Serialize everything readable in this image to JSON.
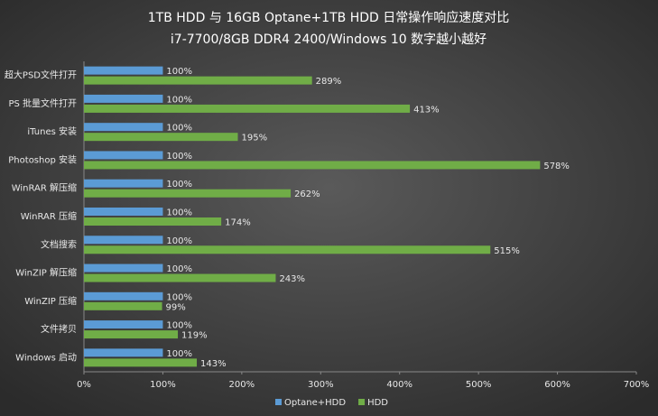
{
  "chart_data": {
    "type": "hbar",
    "title": "1TB HDD 与 16GB Optane+1TB HDD 日常操作响应速度对比",
    "subtitle": "i7-7700/8GB DDR4 2400/Windows 10 数字越小越好",
    "categories": [
      "超大PSD文件打开",
      "PS 批量文件打开",
      "iTunes 安装",
      "Photoshop 安装",
      "WinRAR 解压缩",
      "WinRAR 压缩",
      "文档搜索",
      "WinZIP 解压缩",
      "WinZIP 压缩",
      "文件拷贝",
      "Windows 启动"
    ],
    "series": [
      {
        "name": "Optane+HDD",
        "color": "#5b9bd5",
        "values": [
          100,
          100,
          100,
          100,
          100,
          100,
          100,
          100,
          100,
          100,
          100
        ],
        "value_labels": [
          "100%",
          "100%",
          "100%",
          "100%",
          "100%",
          "100%",
          "100%",
          "100%",
          "100%",
          "100%",
          "100%"
        ]
      },
      {
        "name": "HDD",
        "color": "#70ad47",
        "values": [
          289,
          413,
          195,
          578,
          262,
          174,
          515,
          243,
          99,
          119,
          143
        ],
        "value_labels": [
          "289%",
          "413%",
          "195%",
          "578%",
          "262%",
          "174%",
          "515%",
          "243%",
          "99%",
          "119%",
          "143%"
        ]
      }
    ],
    "xlim": [
      0,
      700
    ],
    "xticks": [
      {
        "value": 0,
        "label": "0%"
      },
      {
        "value": 100,
        "label": "100%"
      },
      {
        "value": 200,
        "label": "200%"
      },
      {
        "value": 300,
        "label": "300%"
      },
      {
        "value": 400,
        "label": "400%"
      },
      {
        "value": 500,
        "label": "500%"
      },
      {
        "value": 600,
        "label": "600%"
      },
      {
        "value": 700,
        "label": "700%"
      }
    ],
    "legend": "bottom"
  }
}
